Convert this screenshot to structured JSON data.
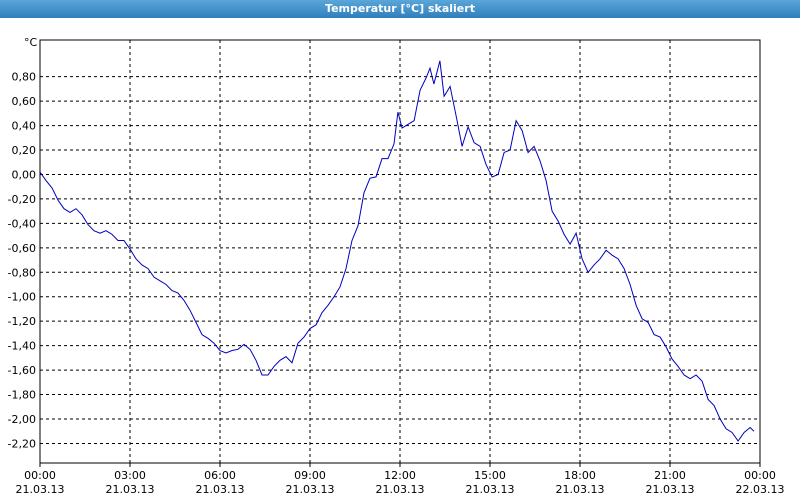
{
  "chart_data": {
    "type": "line",
    "title": "Temperatur [°C] skaliert",
    "y_label": "°C",
    "x": [
      0,
      0.2,
      0.4,
      0.6,
      0.8,
      1.0,
      1.2,
      1.4,
      1.6,
      1.8,
      2.0,
      2.2,
      2.4,
      2.6,
      2.8,
      3.0,
      3.2,
      3.4,
      3.6,
      3.8,
      4.0,
      4.2,
      4.4,
      4.6,
      4.8,
      5.0,
      5.2,
      5.4,
      5.6,
      5.8,
      6.0,
      6.2,
      6.4,
      6.6,
      6.8,
      7.0,
      7.2,
      7.4,
      7.6,
      7.8,
      8.0,
      8.2,
      8.4,
      8.6,
      8.8,
      9.0,
      9.2,
      9.4,
      9.6,
      9.8,
      10.0,
      10.2,
      10.4,
      10.6,
      10.8,
      11.0,
      11.2,
      11.4,
      11.6,
      11.8,
      11.93,
      12.07,
      12.27,
      12.47,
      12.67,
      12.87,
      13.0,
      13.13,
      13.33,
      13.47,
      13.67,
      13.87,
      14.07,
      14.27,
      14.47,
      14.67,
      14.87,
      15.07,
      15.27,
      15.47,
      15.67,
      15.87,
      16.07,
      16.27,
      16.47,
      16.67,
      16.87,
      17.07,
      17.27,
      17.47,
      17.67,
      17.87,
      18.07,
      18.27,
      18.47,
      18.67,
      18.87,
      19.07,
      19.27,
      19.47,
      19.67,
      19.87,
      20.07,
      20.27,
      20.47,
      20.67,
      20.87,
      21.07,
      21.27,
      21.47,
      21.67,
      21.87,
      22.07,
      22.27,
      22.47,
      22.67,
      22.87,
      23.07,
      23.27,
      23.47,
      23.67,
      23.8
    ],
    "series": [
      {
        "name": "Temperatur",
        "color": "#0000c0",
        "values": [
          0.02,
          -0.05,
          -0.11,
          -0.21,
          -0.28,
          -0.31,
          -0.28,
          -0.33,
          -0.41,
          -0.46,
          -0.48,
          -0.46,
          -0.49,
          -0.54,
          -0.54,
          -0.61,
          -0.69,
          -0.74,
          -0.77,
          -0.84,
          -0.87,
          -0.9,
          -0.95,
          -0.97,
          -1.03,
          -1.11,
          -1.21,
          -1.31,
          -1.34,
          -1.38,
          -1.44,
          -1.46,
          -1.44,
          -1.43,
          -1.39,
          -1.43,
          -1.52,
          -1.64,
          -1.64,
          -1.57,
          -1.52,
          -1.49,
          -1.54,
          -1.38,
          -1.33,
          -1.26,
          -1.23,
          -1.13,
          -1.07,
          -1.0,
          -0.92,
          -0.77,
          -0.54,
          -0.42,
          -0.15,
          -0.03,
          -0.02,
          0.13,
          0.13,
          0.25,
          0.51,
          0.38,
          0.41,
          0.44,
          0.69,
          0.79,
          0.87,
          0.74,
          0.93,
          0.64,
          0.72,
          0.48,
          0.23,
          0.39,
          0.26,
          0.23,
          0.08,
          -0.02,
          0.0,
          0.18,
          0.2,
          0.44,
          0.36,
          0.18,
          0.23,
          0.11,
          -0.05,
          -0.3,
          -0.38,
          -0.49,
          -0.57,
          -0.48,
          -0.69,
          -0.8,
          -0.74,
          -0.69,
          -0.62,
          -0.66,
          -0.69,
          -0.77,
          -0.9,
          -1.07,
          -1.18,
          -1.21,
          -1.31,
          -1.33,
          -1.41,
          -1.51,
          -1.57,
          -1.64,
          -1.67,
          -1.64,
          -1.69,
          -1.84,
          -1.89,
          -2.0,
          -2.08,
          -2.11,
          -2.18,
          -2.11,
          -2.07,
          -2.1
        ]
      }
    ],
    "xlim": [
      0,
      24
    ],
    "xticks": [
      {
        "value": 0,
        "label": "00:00",
        "date": "21.03.13"
      },
      {
        "value": 3,
        "label": "03:00",
        "date": "21.03.13"
      },
      {
        "value": 6,
        "label": "06:00",
        "date": "21.03.13"
      },
      {
        "value": 9,
        "label": "09:00",
        "date": "21.03.13"
      },
      {
        "value": 12,
        "label": "12:00",
        "date": "21.03.13"
      },
      {
        "value": 15,
        "label": "15:00",
        "date": "21.03.13"
      },
      {
        "value": 18,
        "label": "18:00",
        "date": "21.03.13"
      },
      {
        "value": 21,
        "label": "21:00",
        "date": "21.03.13"
      },
      {
        "value": 24,
        "label": "00:00",
        "date": "22.03.13"
      }
    ],
    "ylim": [
      -2.36,
      1.1
    ],
    "yticks": [
      {
        "value": 0.8,
        "label": "0,80"
      },
      {
        "value": 0.6,
        "label": "0,60"
      },
      {
        "value": 0.4,
        "label": "0,40"
      },
      {
        "value": 0.2,
        "label": "0,20"
      },
      {
        "value": 0,
        "label": "0,00"
      },
      {
        "value": -0.2,
        "label": "-0,20"
      },
      {
        "value": -0.4,
        "label": "-0,40"
      },
      {
        "value": -0.6,
        "label": "-0,60"
      },
      {
        "value": -0.8,
        "label": "-0,80"
      },
      {
        "value": -1.0,
        "label": "-1,00"
      },
      {
        "value": -1.2,
        "label": "-1,20"
      },
      {
        "value": -1.4,
        "label": "-1,40"
      },
      {
        "value": -1.6,
        "label": "-1,60"
      },
      {
        "value": -1.8,
        "label": "-1,80"
      },
      {
        "value": -2.0,
        "label": "-2,00"
      },
      {
        "value": -2.2,
        "label": "-2,20"
      }
    ],
    "grid": true
  }
}
